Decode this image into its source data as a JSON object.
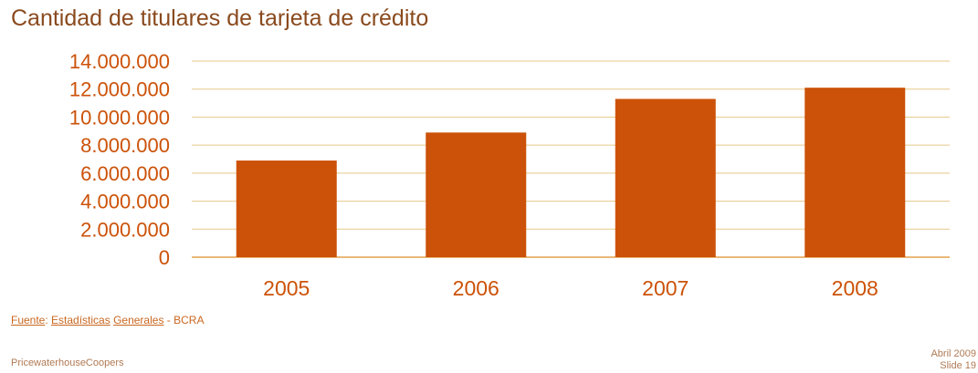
{
  "title": "Cantidad de titulares de tarjeta de crédito",
  "source": {
    "prefix": "Fuente",
    "sep1": ": ",
    "part1": "Estadísticas",
    "sep2": " ",
    "part2": "Generales",
    "suffix": " - BCRA"
  },
  "footer": {
    "company": "PricewaterhouseCoopers",
    "date": "Abril 2009",
    "slide": "Slide 19"
  },
  "colors": {
    "bar": "#cc5209",
    "text": "#cc5209",
    "grid": "#e7c88a",
    "axis": "#e3a14a"
  },
  "chart_data": {
    "type": "bar",
    "title": "Cantidad de titulares de tarjeta de crédito",
    "categories": [
      "2005",
      "2006",
      "2007",
      "2008"
    ],
    "values": [
      6900000,
      8900000,
      11300000,
      12100000
    ],
    "ylim": [
      0,
      14000000
    ],
    "yticks": [
      0,
      2000000,
      4000000,
      6000000,
      8000000,
      10000000,
      12000000,
      14000000
    ],
    "ytick_labels": [
      "0",
      "2.000.000",
      "4.000.000",
      "6.000.000",
      "8.000.000",
      "10.000.000",
      "12.000.000",
      "14.000.000"
    ],
    "xlabel": "",
    "ylabel": "",
    "grid": true,
    "legend": "none"
  }
}
